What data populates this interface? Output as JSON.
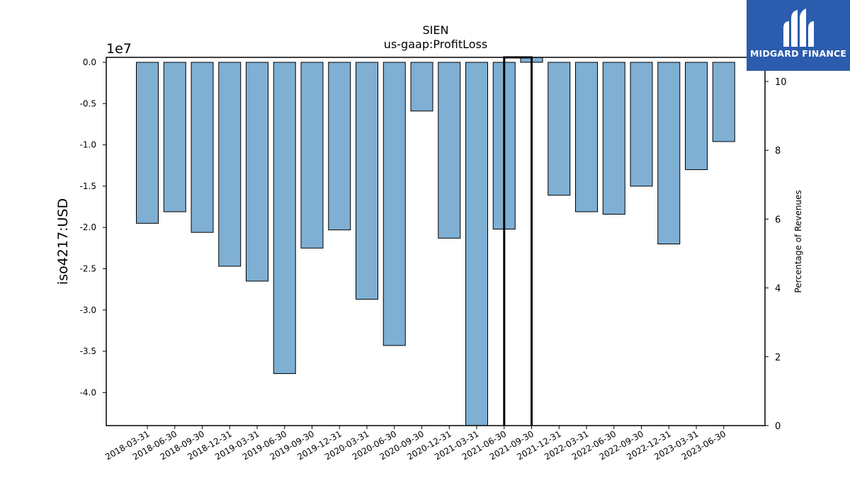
{
  "chart_data": {
    "type": "bar",
    "title": "SIEN",
    "subtitle": "us-gaap:ProfitLoss",
    "ylabel": "iso4217:USD",
    "y_offset_label": "1e7",
    "y2label": "Percentage of Revenues",
    "ylim": [
      -4.4,
      0.06
    ],
    "y2lim": [
      0,
      10.7
    ],
    "yticks": [
      "0.0",
      "-0.5",
      "-1.0",
      "-1.5",
      "-2.0",
      "-2.5",
      "-3.0",
      "-3.5",
      "-4.0"
    ],
    "y2ticks": [
      "0",
      "2",
      "4",
      "6",
      "8",
      "10"
    ],
    "categories": [
      "2018-03-31",
      "2018-06-30",
      "2018-09-30",
      "2018-12-31",
      "2019-03-31",
      "2019-06-30",
      "2019-09-30",
      "2019-12-31",
      "2020-03-31",
      "2020-06-30",
      "2020-09-30",
      "2020-12-31",
      "2021-03-31",
      "2021-06-30",
      "2021-09-30",
      "2021-12-31",
      "2022-03-31",
      "2022-06-30",
      "2022-09-30",
      "2022-12-31",
      "2023-03-31",
      "2023-06-30"
    ],
    "series": [
      {
        "values": [
          -1.95,
          -1.81,
          -2.06,
          -2.47,
          -2.65,
          -3.77,
          -2.25,
          -2.03,
          -2.87,
          -3.43,
          -0.59,
          -2.13,
          -4.4,
          -2.02,
          0.06,
          -1.61,
          -1.81,
          -1.84,
          -1.5,
          -2.2,
          -1.3,
          -0.96
        ],
        "color": "#7fafd3",
        "edgecolor": "#000000"
      }
    ],
    "overlay_line": {
      "series_axis": "y2",
      "points": [
        {
          "category": "2021-06-30",
          "value": 0
        },
        {
          "category": "2021-06-30",
          "value": 10.7
        },
        {
          "category": "2021-09-30",
          "value": 10.7
        },
        {
          "category": "2021-09-30",
          "value": 0
        }
      ],
      "color": "#000000"
    },
    "grid": false
  },
  "logo": {
    "name": "MIDGARD FINANCE",
    "background": "#2b5cad"
  }
}
